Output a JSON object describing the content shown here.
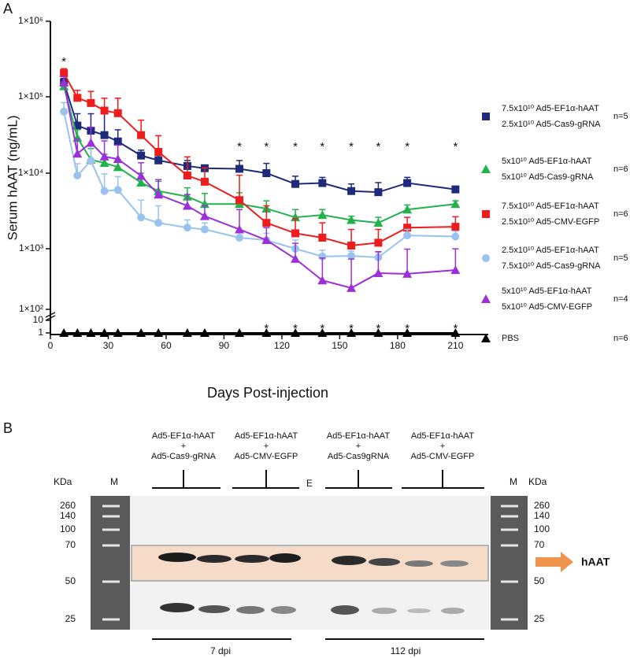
{
  "chart_data": {
    "type": "line",
    "panel_label": "A",
    "ylabel": "Serum hAAT (ng/mL)",
    "xlabel": "Days Post-injection",
    "log_y": true,
    "xlim": [
      0,
      227
    ],
    "xticks": [
      0,
      30,
      60,
      90,
      120,
      150,
      180,
      210
    ],
    "ylim": [
      1,
      1000000
    ],
    "yticks": [
      1,
      10,
      {
        "value": 100,
        "label": "1×10²"
      },
      {
        "value": 1000,
        "label": "1×10³"
      },
      {
        "value": 10000,
        "label": "1×10⁴"
      },
      {
        "value": 100000,
        "label": "1×10⁵"
      },
      {
        "value": 1000000,
        "label": "1×10⁶"
      }
    ],
    "x": [
      7,
      14,
      21,
      28,
      35,
      47,
      56,
      71,
      80,
      98,
      112,
      127,
      141,
      156,
      170,
      185,
      210
    ],
    "series": [
      {
        "name": "7.5x10¹⁰ Ad5-EF1α-hAAT\n2.5x10¹⁰ Ad5-Cas9-gRNA",
        "n": "n=5",
        "color": "#1f2a7a",
        "marker": "square",
        "values": [
          155000,
          42000,
          36000,
          31500,
          26000,
          17000,
          14700,
          12400,
          11600,
          11400,
          10000,
          7200,
          7400,
          5800,
          5600,
          7400,
          6100
        ],
        "errors": [
          20000,
          18000,
          24000,
          38000,
          11000,
          3000,
          2300,
          2200,
          800,
          3200,
          3400,
          1900,
          1400,
          1400,
          1900,
          1400,
          600
        ]
      },
      {
        "name": "5x10¹⁰ Ad5-EF1α-hAAT\n5x10¹⁰ Ad5-Cas9-gRNA",
        "n": "n=6",
        "color": "#22b14c",
        "marker": "triangle",
        "values": [
          138000,
          29000,
          15000,
          13600,
          12000,
          7500,
          5800,
          4900,
          3900,
          3900,
          3400,
          2600,
          2800,
          2400,
          2200,
          3300,
          3900
        ],
        "errors": [
          15000,
          8000,
          6000,
          4000,
          3000,
          2500,
          2000,
          1500,
          1500,
          1600,
          900,
          700,
          500,
          300,
          400,
          500,
          400
        ]
      },
      {
        "name": "7.5x10¹⁰ Ad5-EF1α-hAAT\n2.5x10¹⁰ Ad5-CMV-EGFP",
        "n": "n=6",
        "color": "#ee1c1c",
        "marker": "square",
        "values": [
          205000,
          97000,
          83000,
          66000,
          61000,
          31500,
          19000,
          9300,
          7700,
          4400,
          2200,
          1600,
          1400,
          1100,
          1200,
          1900,
          1950
        ],
        "errors": [
          30000,
          25000,
          35000,
          30000,
          35000,
          18000,
          12000,
          7000,
          4000,
          5000,
          1500,
          900,
          800,
          700,
          600,
          700,
          700
        ]
      },
      {
        "name": "2.5x10¹⁰ Ad5-EF1α-hAAT\n7.5x10¹⁰ Ad5-Cas9-gRNA",
        "n": "n=5",
        "color": "#99c2ee",
        "marker": "circle",
        "values": [
          64000,
          9300,
          14500,
          5800,
          6000,
          2600,
          2200,
          1900,
          1800,
          1400,
          1300,
          1000,
          745,
          760,
          720,
          1500,
          1450
        ],
        "errors": [
          20000,
          4000,
          8000,
          4000,
          3000,
          1800,
          1500,
          500,
          400,
          300,
          300,
          300,
          200,
          150,
          150,
          300,
          250
        ]
      },
      {
        "name": "5x10¹⁰ Ad5-EF1α-hAAT\n5x10¹⁰ Ad5-CMV-EGFP",
        "n": "n=4",
        "color": "#9b30d9",
        "marker": "triangle",
        "values": [
          155000,
          18000,
          25000,
          16500,
          15300,
          9200,
          5200,
          3700,
          2700,
          1800,
          1300,
          680,
          300,
          225,
          395,
          385,
          445
        ],
        "errors": [
          30000,
          10000,
          15000,
          10000,
          8000,
          4500,
          3000,
          1500,
          1000,
          1500,
          600,
          500,
          400,
          450,
          500,
          600,
          550
        ]
      },
      {
        "name": "PBS",
        "n": "n=6",
        "color": "#000000",
        "marker": "triangle",
        "values": [
          1,
          1,
          1,
          1,
          1,
          1,
          1,
          1,
          1,
          1,
          1,
          1,
          1,
          1,
          1,
          1,
          1
        ]
      }
    ],
    "annotations": {
      "text": "*",
      "upper_days": [
        7,
        98,
        112,
        127,
        141,
        156,
        170,
        185,
        210
      ],
      "lower_days": [
        112,
        127,
        141,
        156,
        170,
        185,
        210
      ]
    }
  },
  "blot": {
    "panel_label": "B",
    "groups": [
      [
        "Ad5-EF1α-hAAT",
        "+",
        "Ad5-Cas9-gRNA"
      ],
      [
        "Ad5-EF1α-hAAT",
        "+",
        "Ad5-CMV-EGFP"
      ],
      [
        "Ad5-EF1α-hAAT",
        "+",
        "Ad5-Cas9gRNA"
      ],
      [
        "Ad5-EF1α-hAAT",
        "+",
        "Ad5-CMV-EGFP"
      ]
    ],
    "marker_lane": "M",
    "empty_lane": "E",
    "kda_label": "KDa",
    "markers": [
      "260",
      "140",
      "100",
      "70",
      "50",
      "25"
    ],
    "target": "hAAT",
    "timepoints": [
      "7 dpi",
      "112 dpi"
    ]
  }
}
